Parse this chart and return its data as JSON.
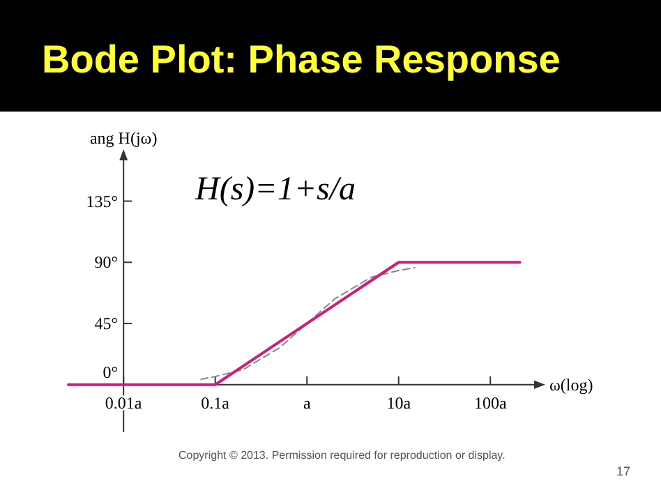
{
  "chart_data": {
    "type": "line",
    "title": "Bode Plot: Phase Response",
    "xlabel": "ω(log)",
    "ylabel": "ang H(jω)",
    "log": "x",
    "xlim": [
      0.0025,
      300
    ],
    "ylim": [
      -35,
      165
    ],
    "xticks": [
      {
        "value": 0.01,
        "label": "0.01a"
      },
      {
        "value": 0.1,
        "label": "0.1a"
      },
      {
        "value": 1,
        "label": "a"
      },
      {
        "value": 10,
        "label": "10a"
      },
      {
        "value": 100,
        "label": "100a"
      }
    ],
    "yticks": [
      {
        "value": 0,
        "label": "0°"
      },
      {
        "value": 45,
        "label": "45°"
      },
      {
        "value": 90,
        "label": "90°"
      },
      {
        "value": 135,
        "label": "135°"
      }
    ],
    "grid": false,
    "marker": "none",
    "series": [
      {
        "color": "#888888",
        "line_style": "dashed",
        "x": [
          0.07,
          0.1,
          0.2,
          0.5,
          1,
          2,
          5,
          10,
          15
        ],
        "values": [
          4,
          6,
          11,
          27,
          45,
          63,
          79,
          84,
          86
        ]
      },
      {
        "color": "#cc1f7a",
        "line_style": "solid",
        "x": [
          0.0025,
          0.1,
          10,
          210
        ],
        "values": [
          0,
          0,
          90,
          90
        ]
      }
    ],
    "annotations": [
      "H(s)=1+s/a",
      "Copyright © 2013. Permission required for reproduction or display.",
      "17"
    ]
  }
}
